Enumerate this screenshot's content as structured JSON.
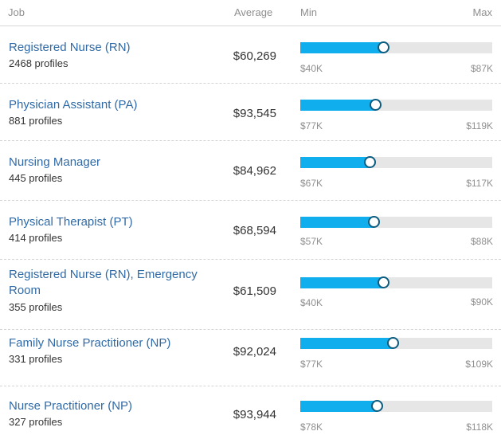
{
  "header": {
    "job": "Job",
    "average": "Average",
    "min": "Min",
    "max": "Max"
  },
  "colors": {
    "link": "#2f6aa7",
    "bar": "#11aeee",
    "knob_border": "#0b5c7f",
    "track": "#e6e6e6"
  },
  "rows": [
    {
      "title": "Registered Nurse (RN)",
      "profiles": "2468 profiles",
      "average": "$60,269",
      "min": "$40K",
      "max": "$87K",
      "fill_fraction": 0.43
    },
    {
      "title": "Physician Assistant (PA)",
      "profiles": "881 profiles",
      "average": "$93,545",
      "min": "$77K",
      "max": "$119K",
      "fill_fraction": 0.39
    },
    {
      "title": "Nursing Manager",
      "profiles": "445 profiles",
      "average": "$84,962",
      "min": "$67K",
      "max": "$117K",
      "fill_fraction": 0.36
    },
    {
      "title": "Physical Therapist (PT)",
      "profiles": "414 profiles",
      "average": "$68,594",
      "min": "$57K",
      "max": "$88K",
      "fill_fraction": 0.38
    },
    {
      "title": "Registered Nurse (RN), Emergency Room",
      "profiles": "355 profiles",
      "average": "$61,509",
      "min": "$40K",
      "max": "$90K",
      "fill_fraction": 0.43
    },
    {
      "title": "Family Nurse Practitioner (NP)",
      "profiles": "331 profiles",
      "average": "$92,024",
      "min": "$77K",
      "max": "$109K",
      "fill_fraction": 0.48
    },
    {
      "title": "Nurse Practitioner (NP)",
      "profiles": "327 profiles",
      "average": "$93,944",
      "min": "$78K",
      "max": "$118K",
      "fill_fraction": 0.4
    }
  ]
}
